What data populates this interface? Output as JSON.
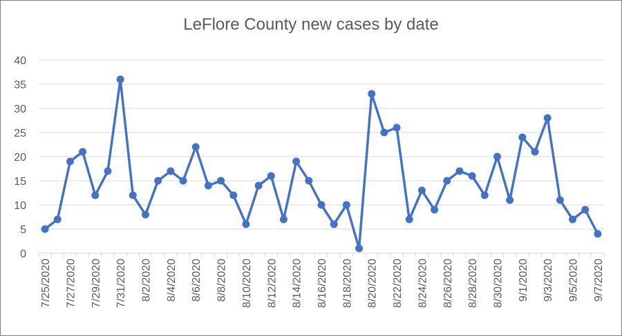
{
  "chart_data": {
    "type": "line",
    "title": "LeFlore County new cases by date",
    "xlabel": "",
    "ylabel": "",
    "ylim": [
      0,
      40
    ],
    "yticks": [
      0,
      5,
      10,
      15,
      20,
      25,
      30,
      35,
      40
    ],
    "grid": true,
    "line_color": "#4472C4",
    "x": [
      "7/25/2020",
      "7/26/2020",
      "7/27/2020",
      "7/28/2020",
      "7/29/2020",
      "7/30/2020",
      "7/31/2020",
      "8/1/2020",
      "8/2/2020",
      "8/3/2020",
      "8/4/2020",
      "8/5/2020",
      "8/6/2020",
      "8/7/2020",
      "8/8/2020",
      "8/9/2020",
      "8/10/2020",
      "8/11/2020",
      "8/12/2020",
      "8/13/2020",
      "8/14/2020",
      "8/15/2020",
      "8/16/2020",
      "8/17/2020",
      "8/18/2020",
      "8/19/2020",
      "8/20/2020",
      "8/21/2020",
      "8/22/2020",
      "8/23/2020",
      "8/24/2020",
      "8/25/2020",
      "8/26/2020",
      "8/27/2020",
      "8/28/2020",
      "8/29/2020",
      "8/30/2020",
      "8/31/2020",
      "9/1/2020",
      "9/2/2020",
      "9/3/2020",
      "9/4/2020",
      "9/5/2020",
      "9/6/2020",
      "9/7/2020"
    ],
    "x_tick_labels": [
      "7/25/2020",
      "7/27/2020",
      "7/29/2020",
      "7/31/2020",
      "8/2/2020",
      "8/4/2020",
      "8/6/2020",
      "8/8/2020",
      "8/10/2020",
      "8/12/2020",
      "8/14/2020",
      "8/16/2020",
      "8/18/2020",
      "8/20/2020",
      "8/22/2020",
      "8/24/2020",
      "8/26/2020",
      "8/28/2020",
      "8/30/2020",
      "9/1/2020",
      "9/3/2020",
      "9/5/2020",
      "9/7/2020"
    ],
    "series": [
      {
        "values": [
          5,
          7,
          19,
          21,
          12,
          17,
          36,
          12,
          8,
          15,
          17,
          15,
          22,
          14,
          15,
          12,
          6,
          14,
          16,
          7,
          19,
          15,
          10,
          6,
          10,
          1,
          33,
          25,
          26,
          7,
          13,
          9,
          15,
          17,
          16,
          12,
          20,
          11,
          24,
          21,
          28,
          11,
          7,
          9,
          4
        ]
      }
    ]
  }
}
